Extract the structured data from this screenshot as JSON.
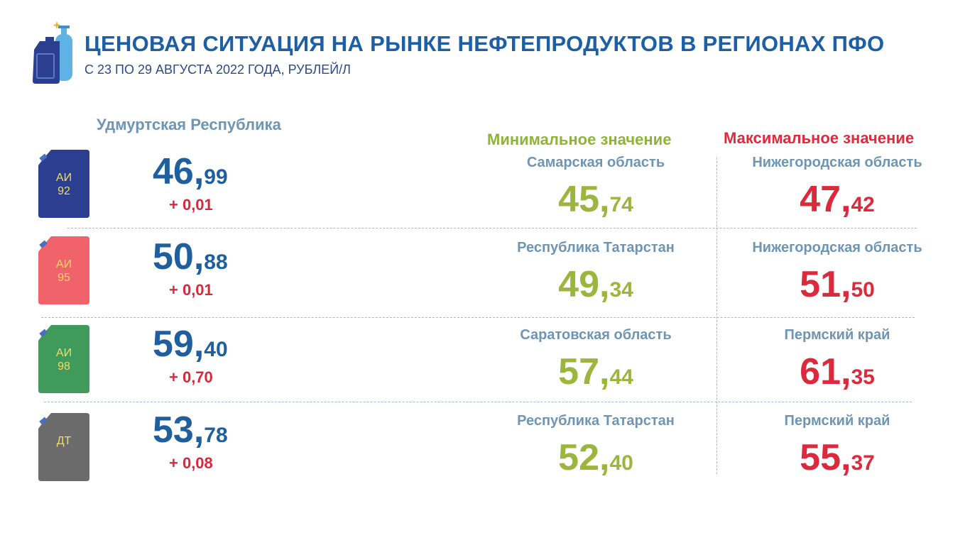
{
  "header": {
    "title": "ЦЕНОВАЯ СИТУАЦИЯ НА РЫНКЕ НЕФТЕПРОДУКТОВ В РЕГИОНАХ ПФО",
    "subtitle": "С 23 ПО 29 АВГУСТА 2022 ГОДА, РУБЛЕЙ/Л",
    "logo_icon": "fuel-canister-and-gas-cylinder-icon"
  },
  "columns": {
    "region": "Удмуртская Республика",
    "min": "Минимальное значение",
    "max": "Максимальное значение"
  },
  "colors": {
    "title": "#1d5fa6",
    "min": "#9cb63d",
    "max": "#db2a3c",
    "price": "#1f5f9e"
  },
  "rows": [
    {
      "fuel": {
        "line1": "АИ",
        "line2": "92",
        "color": "#2c3e8f",
        "icon": "canister-ai92-icon"
      },
      "price": {
        "int": "46,",
        "dec": "99"
      },
      "change": "+ 0,01",
      "min": {
        "region": "Самарская область",
        "int": "45,",
        "dec": "74"
      },
      "max": {
        "region": "Нижегородская область",
        "int": "47,",
        "dec": "42"
      }
    },
    {
      "fuel": {
        "line1": "АИ",
        "line2": "95",
        "color": "#f0636a",
        "icon": "canister-ai95-icon"
      },
      "price": {
        "int": "50,",
        "dec": "88"
      },
      "change": "+ 0,01",
      "min": {
        "region": "Республика Татарстан",
        "int": "49,",
        "dec": "34"
      },
      "max": {
        "region": "Нижегородская область",
        "int": "51,",
        "dec": "50"
      }
    },
    {
      "fuel": {
        "line1": "АИ",
        "line2": "98",
        "color": "#3f9a5b",
        "icon": "canister-ai98-icon"
      },
      "price": {
        "int": "59,",
        "dec": "40"
      },
      "change": "+ 0,70",
      "min": {
        "region": "Саратовская область",
        "int": "57,",
        "dec": "44"
      },
      "max": {
        "region": "Пермский край",
        "int": "61,",
        "dec": "35"
      }
    },
    {
      "fuel": {
        "line1": "ДТ",
        "line2": "",
        "color": "#6b6b6b",
        "icon": "canister-dt-icon"
      },
      "price": {
        "int": "53,",
        "dec": "78"
      },
      "change": "+ 0,08",
      "min": {
        "region": "Республика Татарстан",
        "int": "52,",
        "dec": "40"
      },
      "max": {
        "region": "Пермский край",
        "int": "55,",
        "dec": "37"
      }
    }
  ]
}
